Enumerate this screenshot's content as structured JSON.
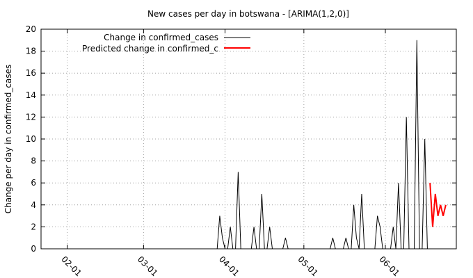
{
  "chart_data": {
    "type": "line",
    "title": "New cases per day in botswana -  [ARIMA(1,2,0)]",
    "xlabel": "",
    "ylabel": "Change per day in confirmed_cases",
    "xlim": [
      "2020-01-22",
      "2020-06-28"
    ],
    "ylim": [
      0,
      20
    ],
    "yticks": [
      0,
      2,
      4,
      6,
      8,
      10,
      12,
      14,
      16,
      18,
      20
    ],
    "xticks": [
      {
        "date": "2020-02-01",
        "label": "02-01"
      },
      {
        "date": "2020-03-01",
        "label": "03-01"
      },
      {
        "date": "2020-04-01",
        "label": "04-01"
      },
      {
        "date": "2020-05-01",
        "label": "05-01"
      },
      {
        "date": "2020-06-01",
        "label": "06-01"
      }
    ],
    "grid": true,
    "legend_position": "top-left",
    "series": [
      {
        "name": "Change in confirmed_cases",
        "color": "#000000",
        "x": [
          "2020-01-22",
          "2020-03-29",
          "2020-03-30",
          "2020-03-31",
          "2020-04-01",
          "2020-04-02",
          "2020-04-03",
          "2020-04-04",
          "2020-04-05",
          "2020-04-06",
          "2020-04-07",
          "2020-04-08",
          "2020-04-09",
          "2020-04-10",
          "2020-04-11",
          "2020-04-12",
          "2020-04-13",
          "2020-04-14",
          "2020-04-15",
          "2020-04-16",
          "2020-04-17",
          "2020-04-18",
          "2020-04-19",
          "2020-04-20",
          "2020-04-21",
          "2020-04-22",
          "2020-04-23",
          "2020-04-24",
          "2020-04-25",
          "2020-04-26",
          "2020-04-27",
          "2020-05-11",
          "2020-05-12",
          "2020-05-13",
          "2020-05-16",
          "2020-05-17",
          "2020-05-18",
          "2020-05-19",
          "2020-05-20",
          "2020-05-21",
          "2020-05-22",
          "2020-05-23",
          "2020-05-24",
          "2020-05-25",
          "2020-05-28",
          "2020-05-29",
          "2020-05-30",
          "2020-05-31",
          "2020-06-02",
          "2020-06-03",
          "2020-06-04",
          "2020-06-05",
          "2020-06-06",
          "2020-06-07",
          "2020-06-08",
          "2020-06-09",
          "2020-06-10",
          "2020-06-11",
          "2020-06-12",
          "2020-06-13",
          "2020-06-14",
          "2020-06-15",
          "2020-06-16",
          "2020-06-17",
          "2020-06-18"
        ],
        "values": [
          0,
          0,
          3,
          1,
          0,
          0,
          2,
          0,
          0,
          7,
          0,
          0,
          0,
          0,
          0,
          2,
          0,
          0,
          5,
          0,
          0,
          2,
          0,
          0,
          0,
          0,
          0,
          1,
          0,
          0,
          0,
          0,
          1,
          0,
          0,
          1,
          0,
          0,
          4,
          1,
          0,
          5,
          0,
          0,
          0,
          3,
          2,
          0,
          0,
          0,
          2,
          0,
          6,
          0,
          0,
          12,
          0,
          0,
          0,
          19,
          0,
          0,
          10,
          0,
          0
        ]
      },
      {
        "name": "Predicted change in confirmed_c",
        "color": "#ff0000",
        "x": [
          "2020-06-18",
          "2020-06-19",
          "2020-06-20",
          "2020-06-21",
          "2020-06-22",
          "2020-06-23",
          "2020-06-24"
        ],
        "values": [
          6,
          2,
          5,
          3,
          4,
          3,
          4
        ]
      }
    ]
  }
}
